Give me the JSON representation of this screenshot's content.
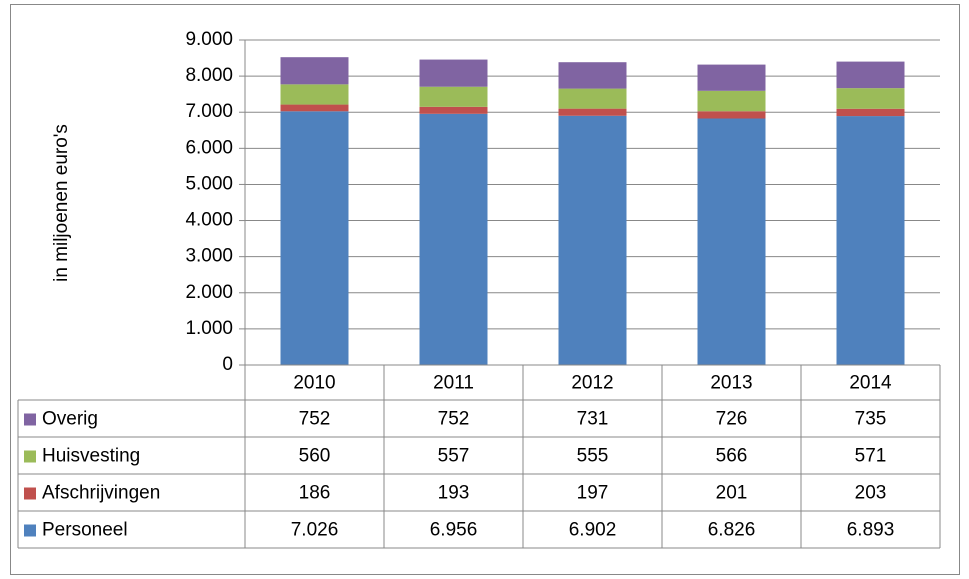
{
  "chart_data": {
    "type": "stacked-bar",
    "y_label": "in miljoenen euro's",
    "categories": [
      "2010",
      "2011",
      "2012",
      "2013",
      "2014"
    ],
    "series": [
      {
        "name": "Personeel",
        "color": "#4f81bd",
        "values": [
          7026,
          6956,
          6902,
          6826,
          6893
        ],
        "value_labels": [
          "7.026",
          "6.956",
          "6.902",
          "6.826",
          "6.893"
        ]
      },
      {
        "name": "Afschrijvingen",
        "color": "#c0504d",
        "values": [
          186,
          193,
          197,
          201,
          203
        ]
      },
      {
        "name": "Huisvesting",
        "color": "#9bbb59",
        "values": [
          560,
          557,
          555,
          566,
          571
        ]
      },
      {
        "name": "Overig",
        "color": "#8064a2",
        "values": [
          752,
          752,
          731,
          726,
          735
        ]
      }
    ],
    "ylim": [
      0,
      9000
    ],
    "yticks": [
      0,
      {
        "value": 1000,
        "label": "1.000"
      },
      {
        "value": 2000,
        "label": "2.000"
      },
      {
        "value": 3000,
        "label": "3.000"
      },
      {
        "value": 4000,
        "label": "4.000"
      },
      {
        "value": 5000,
        "label": "5.000"
      },
      {
        "value": 6000,
        "label": "6.000"
      },
      {
        "value": 7000,
        "label": "7.000"
      },
      {
        "value": 8000,
        "label": "8.000"
      },
      {
        "value": 9000,
        "label": "9.000"
      }
    ],
    "grid": true,
    "data_table": true
  }
}
